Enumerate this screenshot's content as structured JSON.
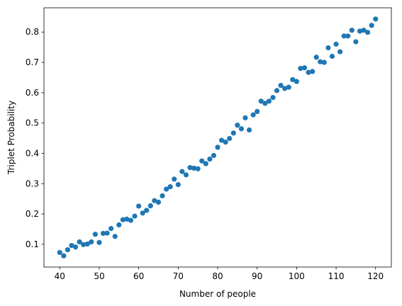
{
  "chart_data": {
    "type": "scatter",
    "title": "",
    "xlabel": "Number of people",
    "ylabel": "Triplet Probability",
    "xlim": [
      36,
      124
    ],
    "ylim": [
      0.025,
      0.88
    ],
    "xticks": [
      40,
      50,
      60,
      70,
      80,
      90,
      100,
      110,
      120
    ],
    "yticks": [
      0.1,
      0.2,
      0.3,
      0.4,
      0.5,
      0.6,
      0.7,
      0.8
    ],
    "ytick_labels": [
      "0.1",
      "0.2",
      "0.3",
      "0.4",
      "0.5",
      "0.6",
      "0.7",
      "0.8"
    ],
    "grid": false,
    "marker_color": "#1f77b4",
    "series": [
      {
        "x": [
          40,
          41,
          42,
          43,
          44,
          45,
          46,
          47,
          48,
          49,
          50,
          51,
          52,
          53,
          54,
          55,
          56,
          57,
          58,
          59,
          60,
          61,
          62,
          63,
          64,
          65,
          66,
          67,
          68,
          69,
          70,
          71,
          72,
          73,
          74,
          75,
          76,
          77,
          78,
          79,
          80,
          81,
          82,
          83,
          84,
          85,
          86,
          87,
          88,
          89,
          90,
          91,
          92,
          93,
          94,
          95,
          96,
          97,
          98,
          99,
          100,
          101,
          102,
          103,
          104,
          105,
          106,
          107,
          108,
          109,
          110,
          111,
          112,
          113,
          114,
          115,
          116,
          117,
          118,
          119,
          120
        ],
        "y": [
          0.073,
          0.062,
          0.082,
          0.096,
          0.091,
          0.108,
          0.099,
          0.101,
          0.108,
          0.133,
          0.106,
          0.136,
          0.137,
          0.152,
          0.126,
          0.164,
          0.181,
          0.183,
          0.179,
          0.193,
          0.226,
          0.203,
          0.212,
          0.227,
          0.244,
          0.239,
          0.26,
          0.282,
          0.29,
          0.315,
          0.297,
          0.34,
          0.329,
          0.353,
          0.351,
          0.349,
          0.375,
          0.366,
          0.381,
          0.393,
          0.42,
          0.443,
          0.437,
          0.449,
          0.467,
          0.493,
          0.481,
          0.517,
          0.477,
          0.527,
          0.538,
          0.572,
          0.565,
          0.572,
          0.584,
          0.607,
          0.624,
          0.614,
          0.618,
          0.643,
          0.637,
          0.68,
          0.682,
          0.667,
          0.67,
          0.717,
          0.702,
          0.7,
          0.748,
          0.72,
          0.76,
          0.735,
          0.787,
          0.787,
          0.806,
          0.768,
          0.803,
          0.806,
          0.799,
          0.822,
          0.843
        ]
      }
    ]
  }
}
